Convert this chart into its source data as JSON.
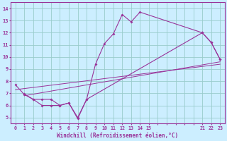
{
  "xlabel": "Windchill (Refroidissement éolien,°C)",
  "bg_color": "#cceeff",
  "line_color": "#993399",
  "grid_color": "#99cccc",
  "ylim": [
    4.5,
    14.5
  ],
  "yticks": [
    5,
    6,
    7,
    8,
    9,
    10,
    11,
    12,
    13,
    14
  ],
  "xtick_labels": [
    "0",
    "1",
    "2",
    "3",
    "4",
    "5",
    "6",
    "7",
    "8",
    "9",
    "10",
    "11",
    "12",
    "13",
    "14",
    "15",
    "",
    "",
    "",
    "",
    "",
    "21",
    "22",
    "23"
  ],
  "xtick_pos": [
    0,
    1,
    2,
    3,
    4,
    5,
    6,
    7,
    8,
    9,
    10,
    11,
    12,
    13,
    14,
    15,
    16,
    17,
    18,
    19,
    20,
    21,
    22,
    23
  ],
  "xlim": [
    -0.5,
    23.5
  ],
  "line1_x": [
    1,
    2,
    3,
    4,
    5,
    6,
    7,
    8,
    9,
    10,
    11,
    12,
    13,
    14,
    21,
    22,
    23
  ],
  "line1_y": [
    6.95,
    6.5,
    6.0,
    6.0,
    6.0,
    6.2,
    5.0,
    6.5,
    9.4,
    11.1,
    11.9,
    13.5,
    12.9,
    13.7,
    12.0,
    11.2,
    9.8
  ],
  "line2_x": [
    0,
    1,
    2,
    3,
    4,
    5,
    6,
    7,
    8,
    21,
    22,
    23
  ],
  "line2_y": [
    7.7,
    6.9,
    6.5,
    6.5,
    6.5,
    6.0,
    6.2,
    4.9,
    6.5,
    12.0,
    11.2,
    9.8
  ],
  "trend1_x": [
    1,
    23
  ],
  "trend1_y": [
    6.8,
    9.6
  ],
  "trend2_x": [
    0,
    23
  ],
  "trend2_y": [
    7.3,
    9.4
  ]
}
